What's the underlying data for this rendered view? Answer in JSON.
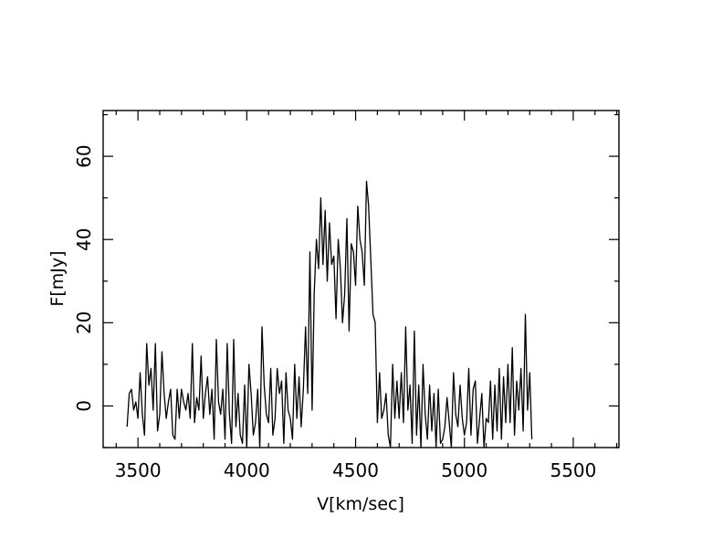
{
  "chart_data": {
    "type": "line",
    "xlabel": "V[km/sec]",
    "ylabel": "F[mJy]",
    "xlim": [
      3340,
      5710
    ],
    "ylim": [
      -10,
      71
    ],
    "xticks": [
      3500,
      4000,
      4500,
      5000,
      5500
    ],
    "yticks": [
      0,
      20,
      40,
      60
    ],
    "grid": false,
    "series": [
      {
        "values": [
          [
            3450,
            -5
          ],
          [
            3460,
            3
          ],
          [
            3470,
            4
          ],
          [
            3480,
            -1
          ],
          [
            3490,
            1
          ],
          [
            3500,
            -3
          ],
          [
            3510,
            8
          ],
          [
            3520,
            -2
          ],
          [
            3530,
            -7
          ],
          [
            3540,
            15
          ],
          [
            3550,
            5
          ],
          [
            3560,
            9
          ],
          [
            3570,
            -1
          ],
          [
            3580,
            15
          ],
          [
            3590,
            -6
          ],
          [
            3600,
            -2
          ],
          [
            3610,
            13
          ],
          [
            3620,
            3
          ],
          [
            3630,
            -3
          ],
          [
            3640,
            1
          ],
          [
            3650,
            4
          ],
          [
            3660,
            -7
          ],
          [
            3670,
            -8
          ],
          [
            3680,
            4
          ],
          [
            3690,
            -3
          ],
          [
            3700,
            4
          ],
          [
            3710,
            1
          ],
          [
            3720,
            -1
          ],
          [
            3730,
            3
          ],
          [
            3740,
            -3
          ],
          [
            3750,
            15
          ],
          [
            3760,
            -4
          ],
          [
            3770,
            2
          ],
          [
            3780,
            -1
          ],
          [
            3790,
            12
          ],
          [
            3800,
            -3
          ],
          [
            3810,
            3
          ],
          [
            3820,
            7
          ],
          [
            3830,
            -2
          ],
          [
            3840,
            4
          ],
          [
            3850,
            -8
          ],
          [
            3860,
            16
          ],
          [
            3870,
            1
          ],
          [
            3880,
            -2
          ],
          [
            3890,
            4
          ],
          [
            3900,
            -8
          ],
          [
            3910,
            15
          ],
          [
            3920,
            -2
          ],
          [
            3930,
            -9
          ],
          [
            3940,
            16
          ],
          [
            3950,
            -5
          ],
          [
            3960,
            3
          ],
          [
            3970,
            -7
          ],
          [
            3980,
            -9
          ],
          [
            3990,
            5
          ],
          [
            4000,
            -10
          ],
          [
            4010,
            10
          ],
          [
            4020,
            3
          ],
          [
            4030,
            -7
          ],
          [
            4040,
            -4
          ],
          [
            4050,
            4
          ],
          [
            4060,
            -10
          ],
          [
            4070,
            19
          ],
          [
            4080,
            5
          ],
          [
            4090,
            -2
          ],
          [
            4100,
            -4
          ],
          [
            4110,
            9
          ],
          [
            4120,
            -7
          ],
          [
            4130,
            -3
          ],
          [
            4140,
            9
          ],
          [
            4150,
            3
          ],
          [
            4160,
            6
          ],
          [
            4170,
            -9
          ],
          [
            4180,
            8
          ],
          [
            4190,
            -1
          ],
          [
            4200,
            -3
          ],
          [
            4210,
            -8
          ],
          [
            4220,
            10
          ],
          [
            4230,
            -3
          ],
          [
            4240,
            7
          ],
          [
            4250,
            -5
          ],
          [
            4260,
            4
          ],
          [
            4270,
            19
          ],
          [
            4280,
            3
          ],
          [
            4290,
            37
          ],
          [
            4300,
            -1
          ],
          [
            4310,
            27
          ],
          [
            4320,
            40
          ],
          [
            4330,
            33
          ],
          [
            4340,
            50
          ],
          [
            4350,
            34
          ],
          [
            4360,
            47
          ],
          [
            4370,
            30
          ],
          [
            4380,
            44
          ],
          [
            4390,
            34
          ],
          [
            4400,
            36
          ],
          [
            4410,
            21
          ],
          [
            4420,
            40
          ],
          [
            4430,
            33
          ],
          [
            4440,
            20
          ],
          [
            4450,
            27
          ],
          [
            4460,
            45
          ],
          [
            4470,
            18
          ],
          [
            4480,
            39
          ],
          [
            4490,
            37
          ],
          [
            4500,
            29
          ],
          [
            4510,
            48
          ],
          [
            4520,
            40
          ],
          [
            4530,
            37
          ],
          [
            4540,
            29
          ],
          [
            4550,
            54
          ],
          [
            4560,
            48
          ],
          [
            4570,
            35
          ],
          [
            4580,
            22
          ],
          [
            4590,
            20
          ],
          [
            4600,
            -4
          ],
          [
            4610,
            8
          ],
          [
            4620,
            -3
          ],
          [
            4630,
            -1
          ],
          [
            4640,
            3
          ],
          [
            4650,
            -7
          ],
          [
            4660,
            -10
          ],
          [
            4670,
            10
          ],
          [
            4680,
            -3
          ],
          [
            4690,
            6
          ],
          [
            4700,
            -3
          ],
          [
            4710,
            8
          ],
          [
            4720,
            -4
          ],
          [
            4730,
            19
          ],
          [
            4740,
            -1
          ],
          [
            4750,
            5
          ],
          [
            4760,
            -9
          ],
          [
            4770,
            18
          ],
          [
            4780,
            -7
          ],
          [
            4790,
            5
          ],
          [
            4800,
            -10
          ],
          [
            4810,
            10
          ],
          [
            4820,
            -2
          ],
          [
            4830,
            -8
          ],
          [
            4840,
            5
          ],
          [
            4850,
            -6
          ],
          [
            4860,
            3
          ],
          [
            4870,
            -10
          ],
          [
            4880,
            4
          ],
          [
            4890,
            -9
          ],
          [
            4900,
            -8
          ],
          [
            4910,
            -5
          ],
          [
            4920,
            2
          ],
          [
            4930,
            -4
          ],
          [
            4940,
            -10
          ],
          [
            4950,
            8
          ],
          [
            4960,
            -2
          ],
          [
            4970,
            -5
          ],
          [
            4980,
            5
          ],
          [
            4990,
            -3
          ],
          [
            5000,
            -7
          ],
          [
            5010,
            -4
          ],
          [
            5020,
            9
          ],
          [
            5030,
            -7
          ],
          [
            5040,
            4
          ],
          [
            5050,
            6
          ],
          [
            5060,
            -9
          ],
          [
            5070,
            -3
          ],
          [
            5080,
            3
          ],
          [
            5090,
            -10
          ],
          [
            5100,
            -3
          ],
          [
            5110,
            -4
          ],
          [
            5120,
            6
          ],
          [
            5130,
            -8
          ],
          [
            5140,
            5
          ],
          [
            5150,
            -6
          ],
          [
            5160,
            9
          ],
          [
            5170,
            -8
          ],
          [
            5180,
            7
          ],
          [
            5190,
            -4
          ],
          [
            5200,
            10
          ],
          [
            5210,
            -4
          ],
          [
            5220,
            14
          ],
          [
            5230,
            -7
          ],
          [
            5240,
            6
          ],
          [
            5250,
            -1
          ],
          [
            5260,
            9
          ],
          [
            5270,
            -6
          ],
          [
            5280,
            22
          ],
          [
            5290,
            -1
          ],
          [
            5300,
            8
          ],
          [
            5310,
            -8
          ]
        ]
      }
    ]
  }
}
